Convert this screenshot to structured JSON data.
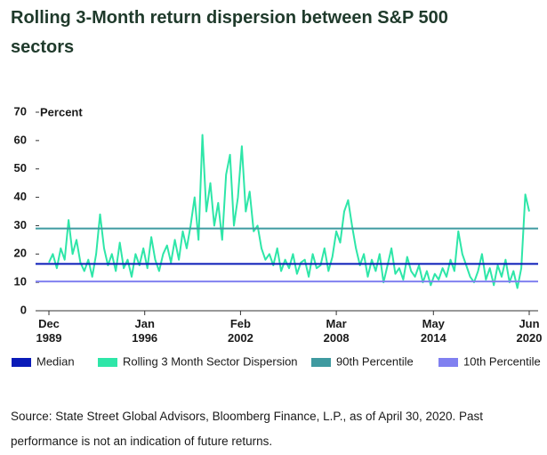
{
  "chart_data": {
    "type": "line",
    "title": "Rolling 3-Month return dispersion between S&P 500 sectors",
    "y_label": "Percent",
    "source": "Source: State Street Global Advisors, Bloomberg Finance, L.P., as of April 30, 2020. Past performance is not an indication of future returns.",
    "ylim": [
      0,
      70
    ],
    "yticks": [
      0,
      10,
      20,
      30,
      40,
      50,
      60,
      70
    ],
    "xlim": [
      "1989-12",
      "2020-06"
    ],
    "xticks": [
      {
        "value": "1989-12",
        "label": "Dec\n1989"
      },
      {
        "value": "1996-01",
        "label": "Jan\n1996"
      },
      {
        "value": "2002-02",
        "label": "Feb\n2002"
      },
      {
        "value": "2008-03",
        "label": "Mar\n2008"
      },
      {
        "value": "2014-05",
        "label": "May\n2014"
      },
      {
        "value": "2020-06",
        "label": "Jun\n2020"
      }
    ],
    "x": [
      "1989-12",
      "1990-03",
      "1990-06",
      "1990-09",
      "1990-12",
      "1991-03",
      "1991-06",
      "1991-09",
      "1991-12",
      "1992-03",
      "1992-06",
      "1992-09",
      "1992-12",
      "1993-03",
      "1993-06",
      "1993-09",
      "1993-12",
      "1994-03",
      "1994-06",
      "1994-09",
      "1994-12",
      "1995-03",
      "1995-06",
      "1995-09",
      "1995-12",
      "1996-03",
      "1996-06",
      "1996-09",
      "1996-12",
      "1997-03",
      "1997-06",
      "1997-09",
      "1997-12",
      "1998-03",
      "1998-06",
      "1998-09",
      "1998-12",
      "1999-03",
      "1999-06",
      "1999-09",
      "1999-12",
      "2000-03",
      "2000-06",
      "2000-09",
      "2000-12",
      "2001-03",
      "2001-06",
      "2001-09",
      "2001-12",
      "2002-03",
      "2002-06",
      "2002-09",
      "2002-12",
      "2003-03",
      "2003-06",
      "2003-09",
      "2003-12",
      "2004-03",
      "2004-06",
      "2004-09",
      "2004-12",
      "2005-03",
      "2005-06",
      "2005-09",
      "2005-12",
      "2006-03",
      "2006-06",
      "2006-09",
      "2006-12",
      "2007-03",
      "2007-06",
      "2007-09",
      "2007-12",
      "2008-03",
      "2008-06",
      "2008-09",
      "2008-12",
      "2009-03",
      "2009-06",
      "2009-09",
      "2009-12",
      "2010-03",
      "2010-06",
      "2010-09",
      "2010-12",
      "2011-03",
      "2011-06",
      "2011-09",
      "2011-12",
      "2012-03",
      "2012-06",
      "2012-09",
      "2012-12",
      "2013-03",
      "2013-06",
      "2013-09",
      "2013-12",
      "2014-03",
      "2014-06",
      "2014-09",
      "2014-12",
      "2015-03",
      "2015-06",
      "2015-09",
      "2015-12",
      "2016-03",
      "2016-06",
      "2016-09",
      "2016-12",
      "2017-03",
      "2017-06",
      "2017-09",
      "2017-12",
      "2018-03",
      "2018-06",
      "2018-09",
      "2018-12",
      "2019-03",
      "2019-06",
      "2019-09",
      "2019-12",
      "2020-03",
      "2020-06"
    ],
    "series": [
      {
        "name": "Rolling 3 Month Sector Dispersion",
        "color": "#2ee6a8",
        "values": [
          17,
          20,
          15,
          22,
          18,
          32,
          20,
          25,
          17,
          14,
          18,
          12,
          20,
          34,
          22,
          16,
          20,
          14,
          24,
          15,
          18,
          12,
          20,
          16,
          22,
          15,
          26,
          18,
          14,
          20,
          23,
          17,
          25,
          18,
          28,
          22,
          30,
          40,
          25,
          62,
          35,
          45,
          30,
          38,
          25,
          48,
          55,
          30,
          40,
          58,
          35,
          42,
          28,
          30,
          22,
          18,
          20,
          16,
          22,
          14,
          18,
          15,
          20,
          13,
          17,
          18,
          12,
          20,
          15,
          16,
          22,
          14,
          19,
          28,
          24,
          35,
          39,
          30,
          22,
          16,
          20,
          12,
          18,
          14,
          20,
          10,
          16,
          22,
          13,
          15,
          11,
          19,
          14,
          12,
          16,
          10,
          14,
          9,
          13,
          11,
          15,
          12,
          18,
          14,
          28,
          20,
          16,
          12,
          10,
          14,
          20,
          11,
          15,
          9,
          16,
          12,
          18,
          10,
          14,
          8,
          15,
          41,
          35
        ]
      }
    ],
    "reference_lines": [
      {
        "name": "Median",
        "value": 16.5,
        "color": "#0a1bb8"
      },
      {
        "name": "90th Percentile",
        "value": 29,
        "color": "#3f9aa0"
      },
      {
        "name": "10th Percentile",
        "value": 10.3,
        "color": "#8080f0"
      }
    ]
  }
}
